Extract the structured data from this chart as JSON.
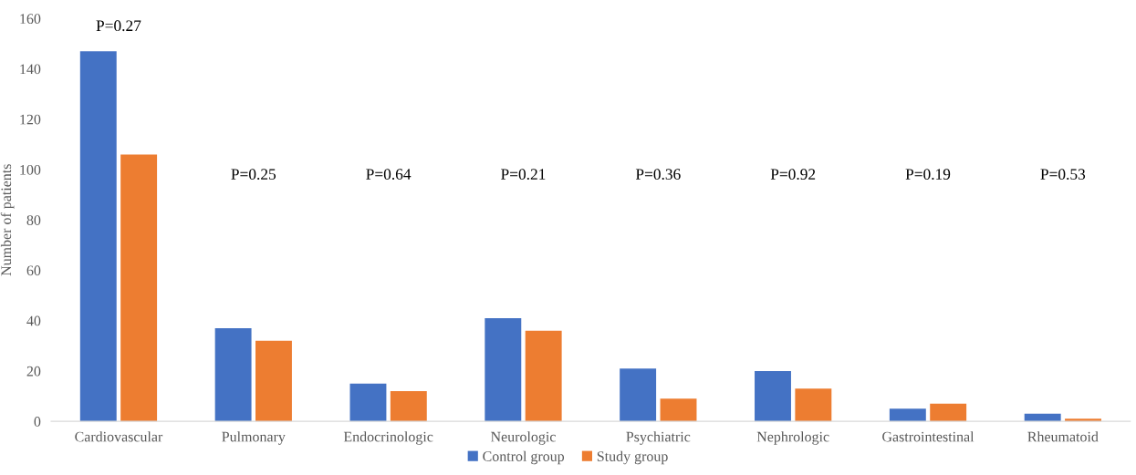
{
  "chart_data": {
    "type": "bar",
    "ylabel": "Number of patients",
    "categories": [
      "Cardiovascular",
      "Pulmonary",
      "Endocrinologic",
      "Neurologic",
      "Psychiatric",
      "Nephrologic",
      "Gastrointestinal",
      "Rheumatoid"
    ],
    "series": [
      {
        "name": "Control group",
        "color": "#4472c4",
        "values": [
          147,
          37,
          15,
          41,
          21,
          20,
          5,
          3
        ]
      },
      {
        "name": "Study group",
        "color": "#ed7d31",
        "values": [
          106,
          32,
          12,
          36,
          9,
          13,
          7,
          1
        ]
      }
    ],
    "ylim": [
      0,
      160
    ],
    "yticks": [
      0,
      20,
      40,
      60,
      80,
      100,
      120,
      140,
      160
    ],
    "grid": false,
    "legend": "bottom",
    "annotations": [
      "P=0.27",
      "P=0.25",
      "P=0.64",
      "P=0.21",
      "P=0.36",
      "P=0.92",
      "P=0.19",
      "P=0.53"
    ]
  }
}
